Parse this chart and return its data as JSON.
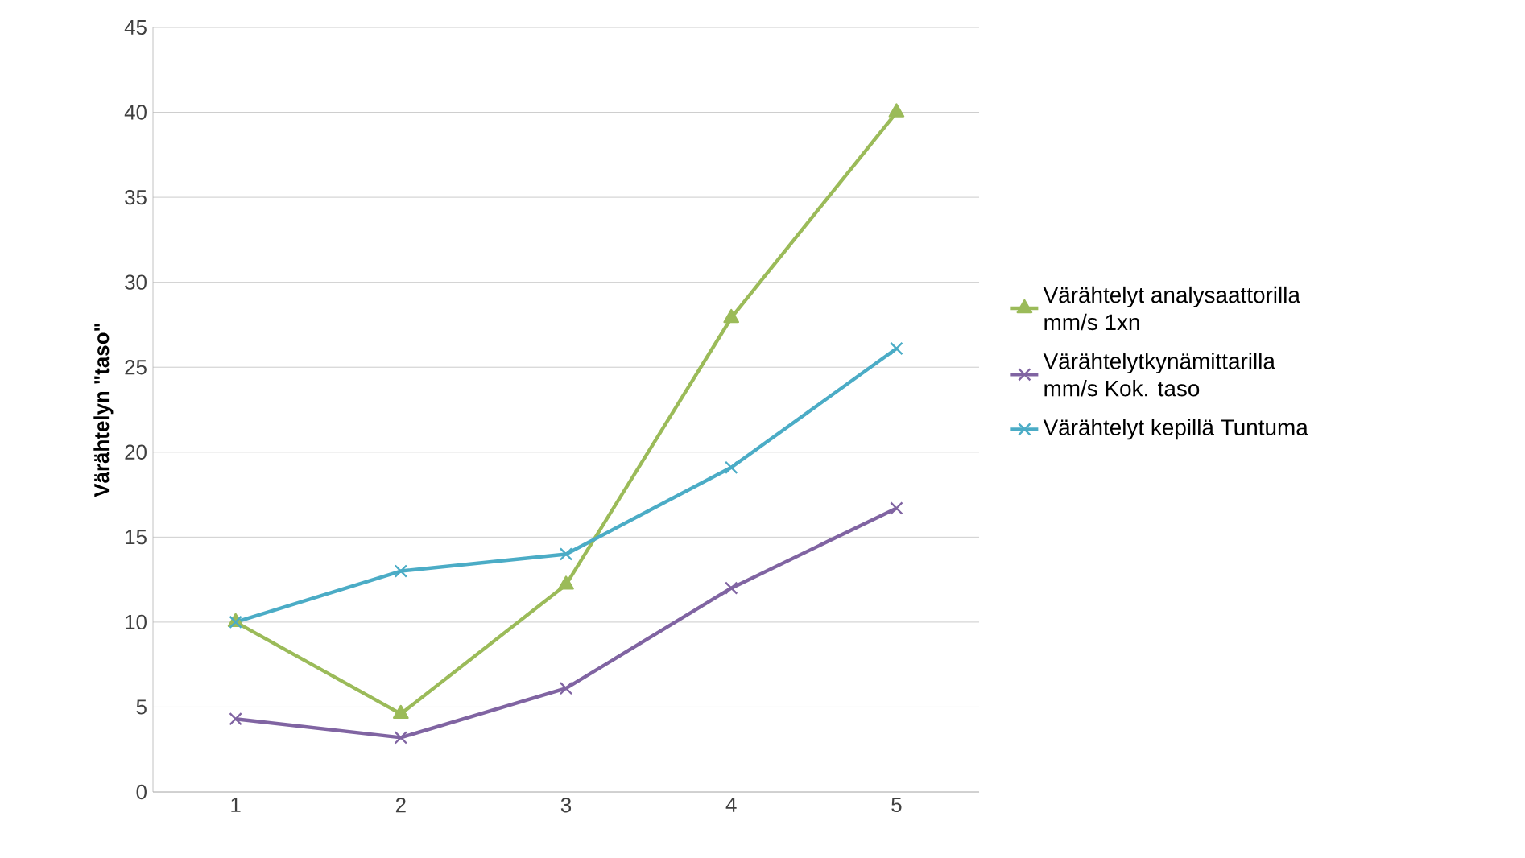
{
  "chart_data": {
    "type": "line",
    "ylabel": "Värähtelyn \"taso\"",
    "categories": [
      "1",
      "2",
      "3",
      "4",
      "5"
    ],
    "ylim": [
      0,
      45
    ],
    "yticks": [
      0,
      5,
      10,
      15,
      20,
      25,
      30,
      35,
      40,
      45
    ],
    "grid": "y",
    "legend": "right",
    "line_style": "solid",
    "series": [
      {
        "name": "Värähtelyt analysaattorilla mm/s 1xn",
        "color": "#9bbb59",
        "marker": "triangle",
        "values": [
          10,
          4.6,
          12.2,
          27.9,
          40
        ]
      },
      {
        "name": "Värähtelytkynämittarilla mm/s Kok. taso",
        "color": "#8064a2",
        "marker": "cross",
        "values": [
          4.3,
          3.2,
          6.1,
          12.0,
          16.7
        ]
      },
      {
        "name": "Värähtelyt kepillä  Tuntuma",
        "color": "#4bacc6",
        "marker": "cross",
        "values": [
          10,
          13,
          14,
          19.1,
          26.1
        ]
      }
    ]
  }
}
